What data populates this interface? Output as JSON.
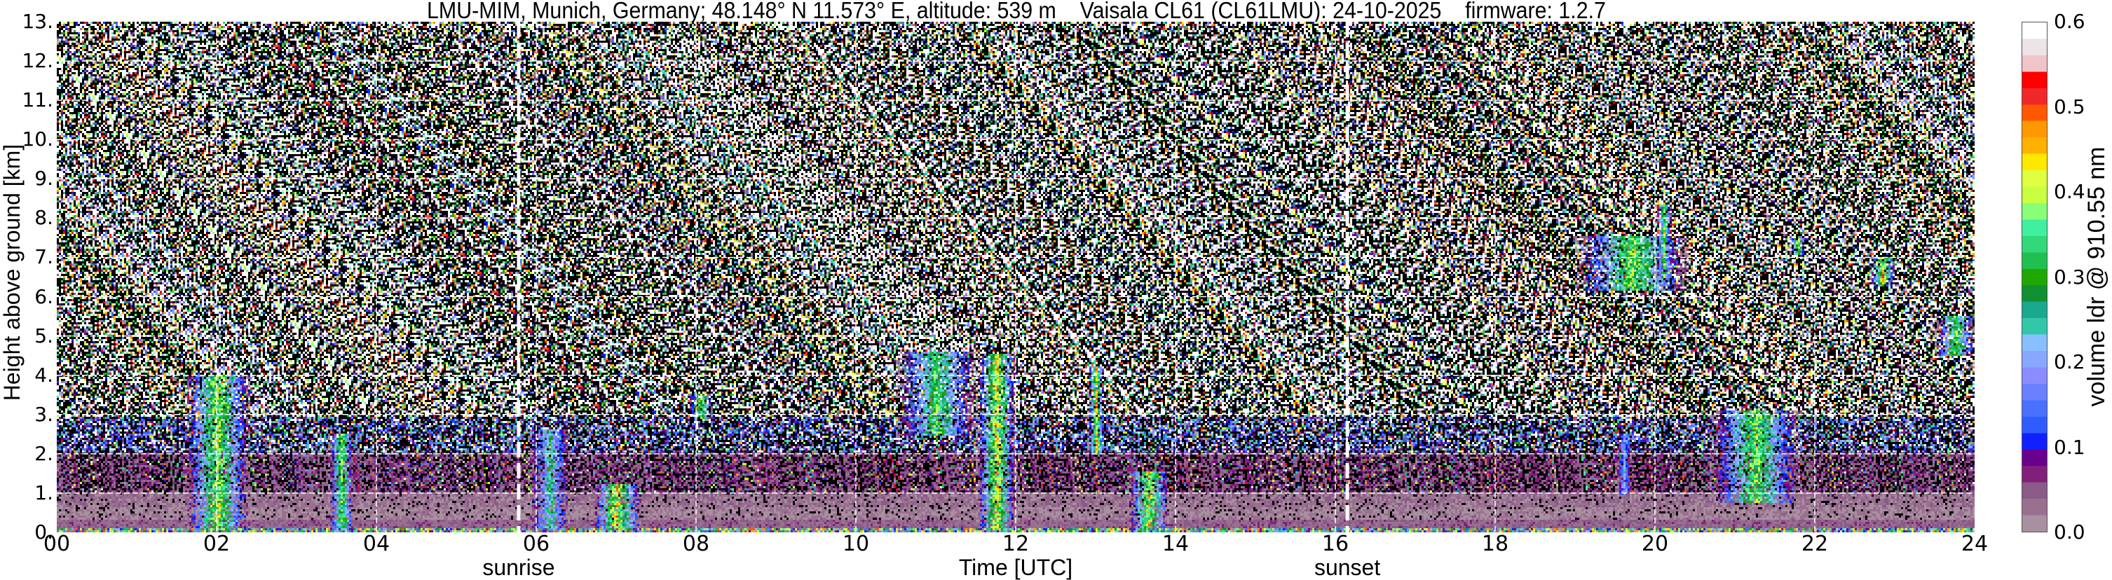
{
  "chart_data": {
    "type": "heatmap",
    "title": "LMU-MIM, Munich, Germany; 48.148° N 11.573° E, altitude: 539 m    Vaisala CL61 (CL61LMU): 24-10-2025    firmware: 1.2.7",
    "xlabel": "Time [UTC]",
    "ylabel": "Height above ground [km]",
    "xlim": [
      0,
      24
    ],
    "ylim": [
      0,
      13
    ],
    "xticks": [
      "00",
      "02",
      "04",
      "06",
      "08",
      "10",
      "12",
      "14",
      "16",
      "18",
      "20",
      "22",
      "24"
    ],
    "yticks": [
      "0.",
      "1.",
      "2.",
      "3.",
      "4.",
      "5.",
      "6.",
      "7.",
      "8.",
      "9.",
      "10.",
      "11.",
      "12.",
      "13."
    ],
    "grid": true,
    "colorbar": {
      "label": "volume ldr @ 910.55 nm",
      "range": [
        0,
        0.6
      ],
      "ticks": [
        "0.0",
        "0.1",
        "0.2",
        "0.3",
        "0.4",
        "0.5",
        "0.6"
      ],
      "colors": [
        "#a890a0",
        "#9a7090",
        "#8a5a88",
        "#80207a",
        "#6a0090",
        "#1020ff",
        "#2e5cff",
        "#4a70ff",
        "#6a80ff",
        "#8a8cff",
        "#88a8ff",
        "#88c0ff",
        "#30c8a8",
        "#1aa890",
        "#109030",
        "#20a800",
        "#20c050",
        "#30d878",
        "#40f0a0",
        "#88ff78",
        "#c8ff40",
        "#e0ff40",
        "#ffe800",
        "#ffb000",
        "#ff9800",
        "#ff5800",
        "#f02828",
        "#ff0000",
        "#f0c4c8",
        "#ece4e6",
        "#ffffff"
      ]
    },
    "annotations": [
      {
        "label": "sunrise",
        "time": 5.78
      },
      {
        "label": "sunset",
        "time": 16.15
      }
    ],
    "features": [
      {
        "t": [
          1.6,
          2.4
        ],
        "h": [
          0.1,
          4.0
        ],
        "ldr": 0.42
      },
      {
        "t": [
          3.4,
          3.7
        ],
        "h": [
          0.1,
          2.5
        ],
        "ldr": 0.4
      },
      {
        "t": [
          5.9,
          6.4
        ],
        "h": [
          0.1,
          2.6
        ],
        "ldr": 0.3
      },
      {
        "t": [
          6.7,
          7.3
        ],
        "h": [
          0.1,
          1.2
        ],
        "ldr": 0.47
      },
      {
        "t": [
          7.9,
          8.2
        ],
        "h": [
          2.9,
          3.5
        ],
        "ldr": 0.38
      },
      {
        "t": [
          10.5,
          11.5
        ],
        "h": [
          2.5,
          4.6
        ],
        "ldr": 0.36
      },
      {
        "t": [
          11.5,
          12.0
        ],
        "h": [
          0.1,
          4.5
        ],
        "ldr": 0.47
      },
      {
        "t": [
          12.9,
          13.1
        ],
        "h": [
          2.0,
          4.2
        ],
        "ldr": 0.46
      },
      {
        "t": [
          13.4,
          13.9
        ],
        "h": [
          0.1,
          1.5
        ],
        "ldr": 0.45
      },
      {
        "t": [
          19.5,
          19.7
        ],
        "h": [
          1.0,
          2.5
        ],
        "ldr": 0.22
      },
      {
        "t": [
          19.0,
          20.4
        ],
        "h": [
          6.2,
          7.5
        ],
        "ldr": 0.4
      },
      {
        "t": [
          20.0,
          20.2
        ],
        "h": [
          6.5,
          8.3
        ],
        "ldr": 0.38
      },
      {
        "t": [
          20.7,
          21.8
        ],
        "h": [
          0.8,
          3.1
        ],
        "ldr": 0.4
      },
      {
        "t": [
          21.7,
          21.85
        ],
        "h": [
          7.1,
          7.5
        ],
        "ldr": 0.46
      },
      {
        "t": [
          22.7,
          23.0
        ],
        "h": [
          6.3,
          7.0
        ],
        "ldr": 0.46
      },
      {
        "t": [
          23.5,
          24.0
        ],
        "h": [
          4.5,
          5.5
        ],
        "ldr": 0.38
      }
    ]
  }
}
